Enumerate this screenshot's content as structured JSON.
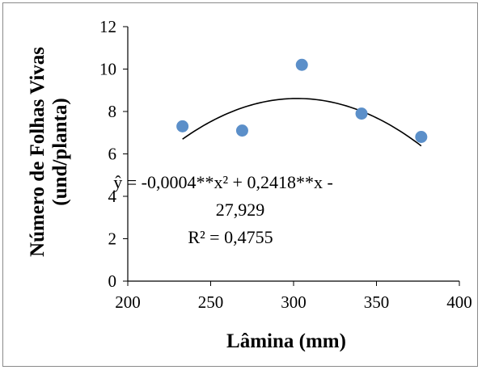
{
  "chart_data": {
    "type": "scatter",
    "xlabel": "Lâmina (mm)",
    "ylabel_line1": "Número de Folhas Vivas",
    "ylabel_line2": "(und/planta)",
    "xlim": [
      200,
      400
    ],
    "ylim": [
      0,
      12
    ],
    "xticks": [
      "200",
      "250",
      "300",
      "350",
      "400"
    ],
    "yticks": [
      "0",
      "2",
      "4",
      "6",
      "8",
      "10",
      "12"
    ],
    "series": [
      {
        "x": [
          233,
          269,
          305,
          341,
          377
        ],
        "y": [
          7.3,
          7.1,
          10.2,
          7.9,
          6.8
        ]
      }
    ],
    "trendline": {
      "type": "polynomial",
      "coefficients": {
        "a": -0.0004,
        "b": 0.2418,
        "c": -27.929
      },
      "x_range": [
        233,
        377
      ]
    },
    "annotation": {
      "line1": "ŷ = -0,0004**x² + 0,2418**x -",
      "line2": "27,929",
      "line3": "R² = 0,4755"
    },
    "colors": {
      "points": "#5b8fc9",
      "trendline": "#000000",
      "axis": "#000000"
    },
    "grid": false
  }
}
